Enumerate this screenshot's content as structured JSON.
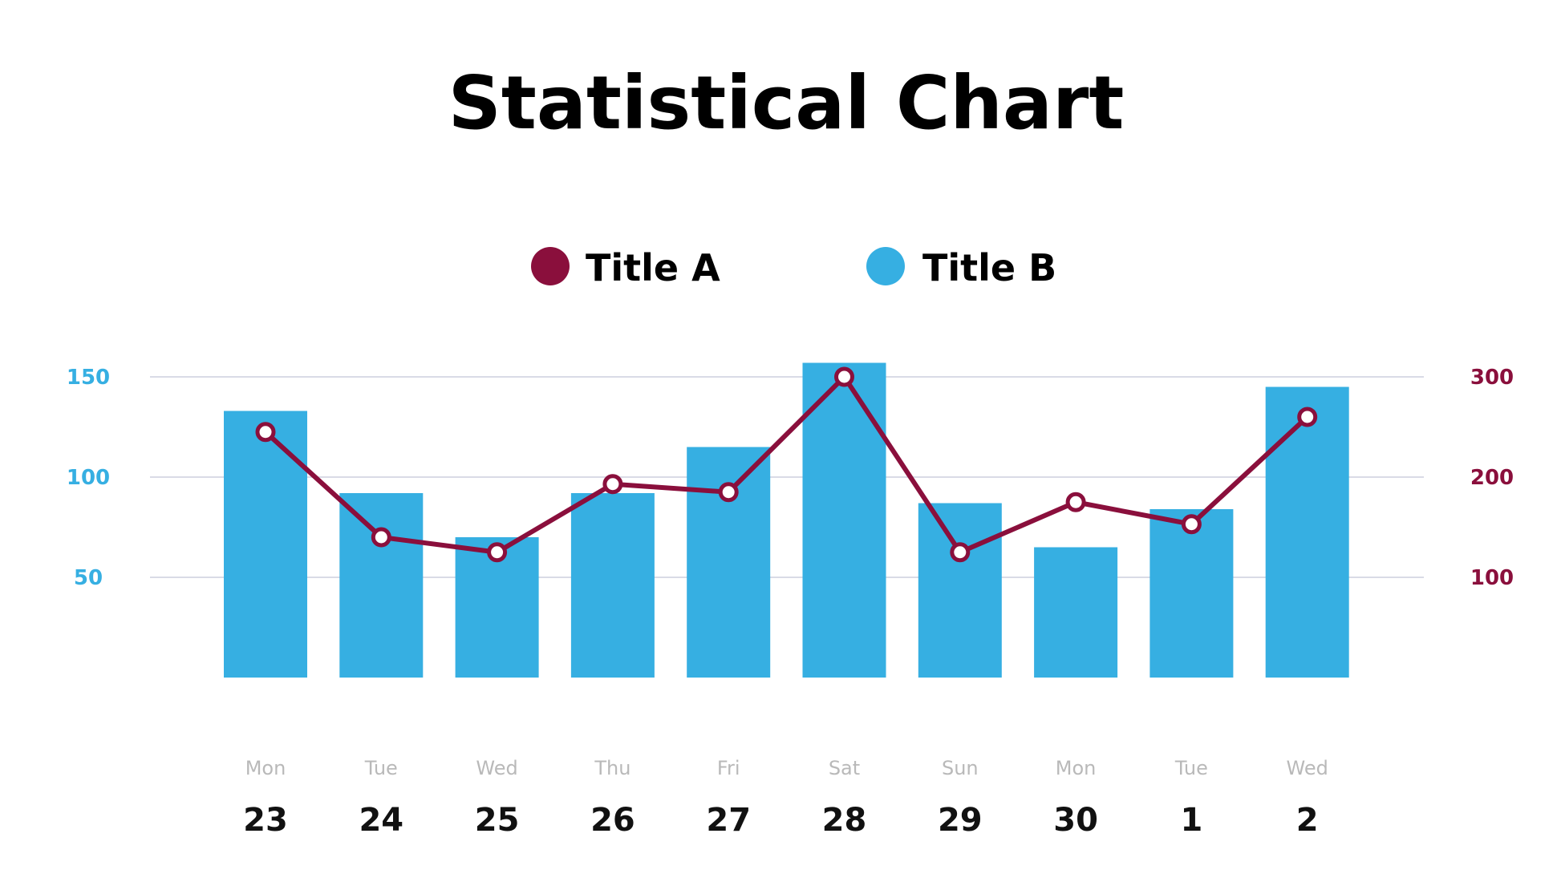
{
  "chart_data": {
    "type": "bar",
    "title": "Statistical Chart",
    "categories": [
      "Mon 23",
      "Tue 24",
      "Wed 25",
      "Thu 26",
      "Fri 27",
      "Sat 28",
      "Sun 29",
      "Mon 30",
      "Tue 1",
      "Wed 2"
    ],
    "day_labels": [
      "Mon",
      "Tue",
      "Wed",
      "Thu",
      "Fri",
      "Sat",
      "Sun",
      "Mon",
      "Tue",
      "Wed"
    ],
    "date_labels": [
      "23",
      "24",
      "25",
      "26",
      "27",
      "28",
      "29",
      "30",
      "1",
      "2"
    ],
    "series": [
      {
        "name": "Title B",
        "type": "bar",
        "axis": "left",
        "color": "#36afe2",
        "values": [
          133,
          92,
          70,
          92,
          115,
          157,
          87,
          65,
          84,
          145
        ]
      },
      {
        "name": "Title A",
        "type": "line",
        "axis": "right",
        "color": "#8a0f3c",
        "values": [
          245,
          140,
          125,
          193,
          185,
          300,
          125,
          175,
          153,
          260
        ]
      }
    ],
    "y_left": {
      "ticks": [
        "50",
        "100",
        "150"
      ],
      "tick_values": [
        50,
        100,
        150
      ],
      "ylim": [
        0,
        150
      ],
      "color": "#36afe2"
    },
    "y_right": {
      "ticks": [
        "100",
        "200",
        "300"
      ],
      "tick_values": [
        100,
        200,
        300
      ],
      "ylim": [
        0,
        300
      ],
      "color": "#8a0f3c"
    },
    "grid": true,
    "legend": "top-center"
  }
}
